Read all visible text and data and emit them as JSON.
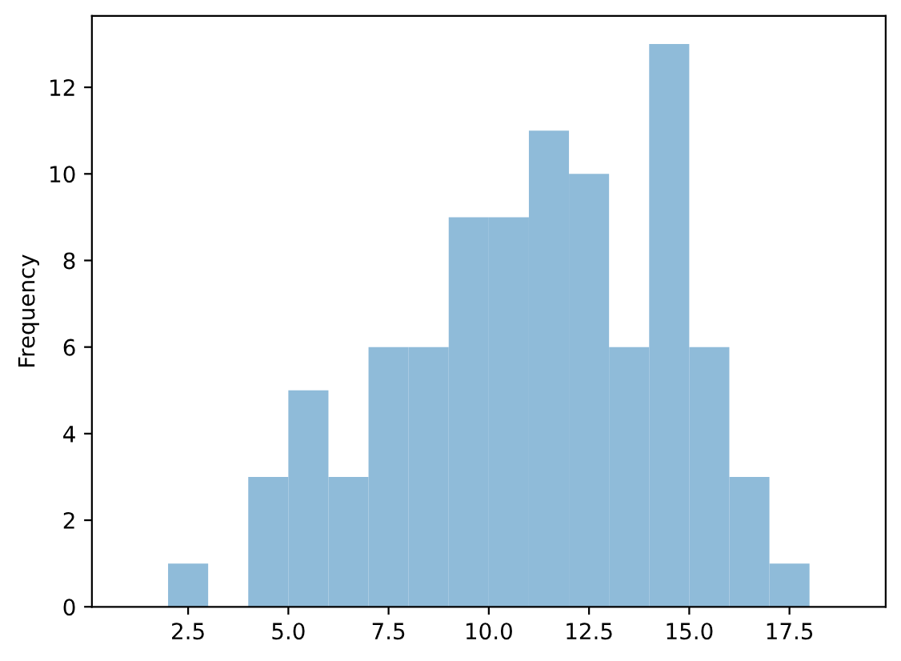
{
  "chart_data": {
    "type": "histogram",
    "ylabel": "Frequency",
    "bins": [
      1,
      2,
      3,
      4,
      5,
      6,
      7,
      8,
      9,
      10,
      11,
      12,
      13,
      14,
      15,
      16,
      17,
      18,
      19
    ],
    "values": [
      0,
      1,
      0,
      3,
      5,
      3,
      6,
      6,
      9,
      9,
      11,
      10,
      6,
      13,
      6,
      3,
      1,
      0
    ],
    "color": "#8fbbd9",
    "xlim": [
      0.1,
      19.9
    ],
    "xticks": [
      2.5,
      {
        "value": 5,
        "label": "5.0"
      },
      7.5,
      {
        "value": 10,
        "label": "10.0"
      },
      12.5,
      {
        "value": 15,
        "label": "15.0"
      },
      17.5
    ],
    "ylim": [
      0,
      13.65
    ],
    "yticks": [
      0,
      2,
      4,
      6,
      8,
      10,
      12
    ],
    "grid": false
  }
}
